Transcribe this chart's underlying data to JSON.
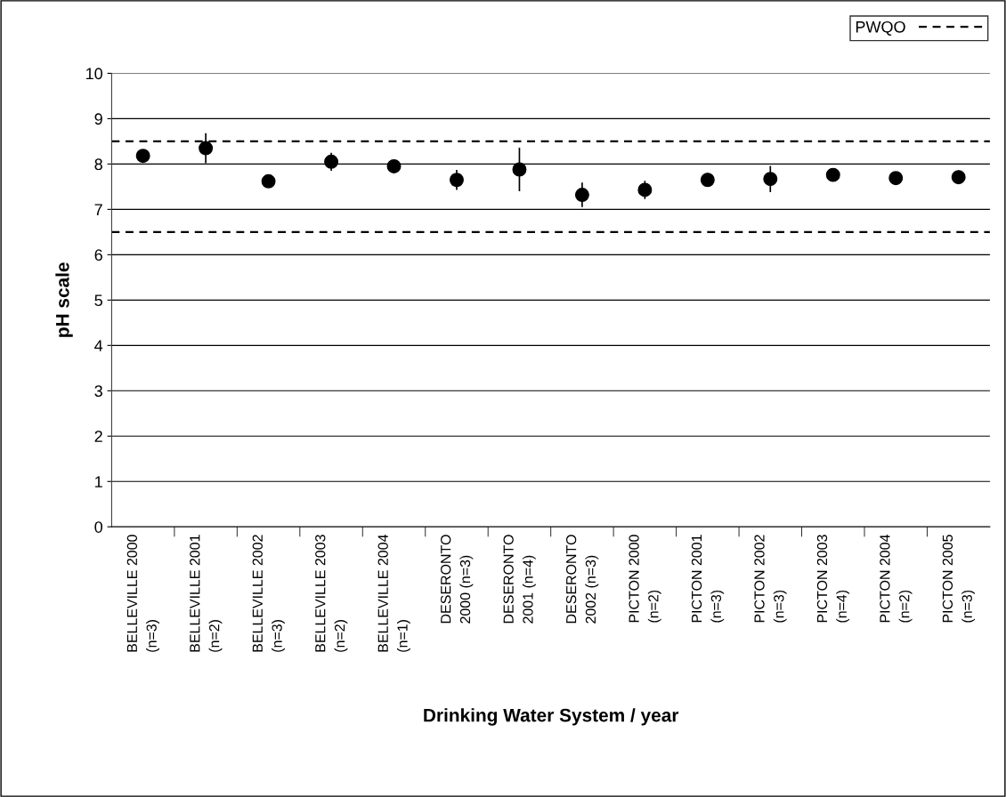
{
  "chart_data": {
    "type": "scatter",
    "xlabel": "Drinking Water System / year",
    "ylabel": "pH scale",
    "categories": [
      "BELLEVILLE 2000\n(n=3)",
      "BELLEVILLE 2001\n(n=2)",
      "BELLEVILLE 2002\n(n=3)",
      "BELLEVILLE 2003\n(n=2)",
      "BELLEVILLE 2004\n(n=1)",
      "DESERONTO\n2000 (n=3)",
      "DESERONTO\n2001 (n=4)",
      "DESERONTO\n2002 (n=3)",
      "PICTON 2000\n(n=2)",
      "PICTON 2001\n(n=3)",
      "PICTON 2002\n(n=3)",
      "PICTON 2003\n(n=4)",
      "PICTON 2004\n(n=2)",
      "PICTON 2005\n(n=3)"
    ],
    "series": [
      {
        "color": "#000000",
        "values": [
          8.18,
          8.35,
          7.62,
          8.05,
          7.95,
          7.65,
          7.88,
          7.32,
          7.43,
          7.65,
          7.67,
          7.76,
          7.69,
          7.71
        ],
        "errors": [
          null,
          0.33,
          null,
          0.2,
          null,
          0.22,
          0.48,
          0.27,
          0.2,
          0.15,
          0.29,
          0.1,
          null,
          0.15
        ]
      }
    ],
    "ylim": [
      0,
      10
    ],
    "yticks": [
      0,
      1,
      2,
      3,
      4,
      5,
      6,
      7,
      8,
      9,
      10
    ],
    "grid": "y",
    "marker": "circle",
    "ref_lines": [
      {
        "axis": "y",
        "value": 8.5,
        "label": "PWQO",
        "color": "#000000",
        "line_style": "dashed"
      },
      {
        "axis": "y",
        "value": 6.5,
        "color": "#000000",
        "line_style": "dashed"
      }
    ],
    "legend": "top right"
  }
}
